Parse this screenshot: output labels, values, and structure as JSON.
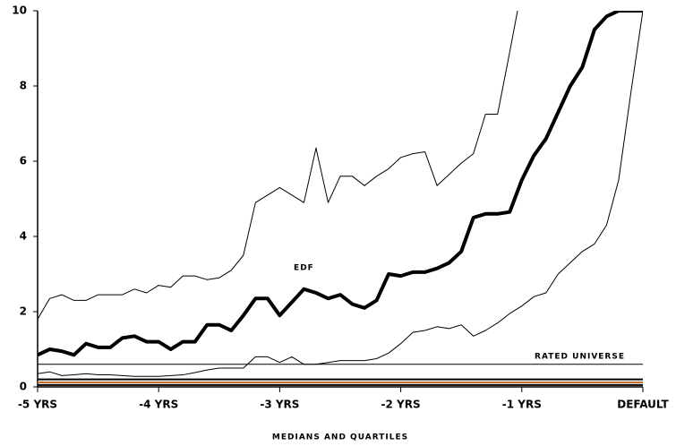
{
  "chart_data": {
    "type": "line",
    "xlabel": "MEDIANS AND QUARTILES",
    "xlim": [
      -5,
      0
    ],
    "ylim": [
      0,
      10
    ],
    "xticks": [
      {
        "value": -5,
        "label": "-5 YRS"
      },
      {
        "value": -4,
        "label": "-4 YRS"
      },
      {
        "value": -3,
        "label": "-3 YRS"
      },
      {
        "value": -2,
        "label": "-2 YRS"
      },
      {
        "value": -1,
        "label": "-1 YRS"
      },
      {
        "value": 0,
        "label": "DEFAULT"
      }
    ],
    "yticks": [
      0,
      2,
      4,
      6,
      8,
      10
    ],
    "x": [
      -5,
      -4.9,
      -4.8,
      -4.7,
      -4.6,
      -4.5,
      -4.4,
      -4.3,
      -4.2,
      -4.1,
      -4,
      -3.9,
      -3.8,
      -3.7,
      -3.6,
      -3.5,
      -3.4,
      -3.3,
      -3.2,
      -3.1,
      -3,
      -2.9,
      -2.8,
      -2.7,
      -2.6,
      -2.5,
      -2.4,
      -2.3,
      -2.2,
      -2.1,
      -2,
      -1.9,
      -1.8,
      -1.7,
      -1.6,
      -1.5,
      -1.4,
      -1.3,
      -1.2,
      -1.1,
      -1,
      -0.9,
      -0.8,
      -0.7,
      -0.6,
      -0.5,
      -0.4,
      -0.3,
      -0.2,
      -0.1,
      0
    ],
    "series": [
      {
        "label": "EDF",
        "color": "#000000",
        "width": 4,
        "values": [
          0.85,
          1.0,
          0.95,
          0.85,
          1.15,
          1.05,
          1.05,
          1.3,
          1.35,
          1.2,
          1.2,
          1.0,
          1.2,
          1.2,
          1.65,
          1.65,
          1.5,
          1.9,
          2.35,
          2.35,
          1.9,
          2.25,
          2.6,
          2.5,
          2.35,
          2.45,
          2.2,
          2.1,
          2.3,
          3.0,
          2.95,
          3.05,
          3.05,
          3.15,
          3.3,
          3.6,
          4.5,
          4.6,
          4.6,
          4.65,
          5.5,
          6.15,
          6.6,
          7.3,
          8.0,
          8.5,
          9.5,
          9.85,
          10,
          10,
          10
        ]
      },
      {
        "color": "#000000",
        "width": 1,
        "values": [
          1.8,
          2.35,
          2.45,
          2.3,
          2.3,
          2.45,
          2.45,
          2.45,
          2.6,
          2.5,
          2.7,
          2.65,
          2.95,
          2.95,
          2.85,
          2.9,
          3.1,
          3.5,
          4.9,
          5.1,
          5.3,
          5.1,
          4.9,
          6.35,
          4.9,
          5.6,
          5.6,
          5.35,
          5.6,
          5.8,
          6.1,
          6.2,
          6.25,
          5.35,
          5.65,
          5.95,
          6.2,
          7.25,
          7.25,
          8.9,
          10.6,
          null,
          null,
          null,
          null,
          null,
          null,
          null,
          null,
          null,
          null
        ]
      },
      {
        "color": "#000000",
        "width": 1,
        "values": [
          0.35,
          0.4,
          0.3,
          0.32,
          0.35,
          0.32,
          0.32,
          0.3,
          0.28,
          0.28,
          0.28,
          0.3,
          0.32,
          0.38,
          0.45,
          0.5,
          0.5,
          0.5,
          0.8,
          0.8,
          0.65,
          0.8,
          0.6,
          0.6,
          0.65,
          0.7,
          0.7,
          0.7,
          0.75,
          0.9,
          1.15,
          1.45,
          1.5,
          1.6,
          1.55,
          1.65,
          1.35,
          1.5,
          1.7,
          1.95,
          2.15,
          2.4,
          2.5,
          3.0,
          3.3,
          3.6,
          3.8,
          4.3,
          5.5,
          7.8,
          10
        ]
      },
      {
        "label": "RATED UNIVERSE",
        "color": "#000000",
        "width": 1,
        "x": [
          -5,
          0
        ],
        "values": [
          0.6,
          0.6
        ]
      },
      {
        "color": "#000000",
        "width": 2,
        "x": [
          -5,
          0
        ],
        "values": [
          0.2,
          0.2
        ]
      },
      {
        "color": "#c07030",
        "width": 2,
        "x": [
          -5,
          0
        ],
        "values": [
          0.12,
          0.12
        ]
      },
      {
        "color": "#000000",
        "width": 2,
        "x": [
          -5,
          0
        ],
        "values": [
          0.05,
          0.05
        ]
      }
    ]
  }
}
